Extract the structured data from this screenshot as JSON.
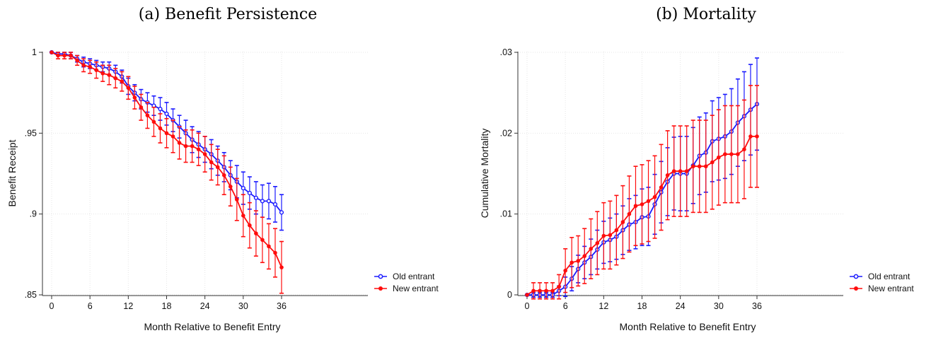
{
  "colors": {
    "old": "#1a1aff",
    "new": "#ff0d0d"
  },
  "chart_data": [
    {
      "type": "line",
      "title": "(a) Benefit Persistence",
      "xlabel": "Month Relative to Benefit Entry",
      "ylabel": "Benefit Receipt",
      "xlim": [
        0,
        36
      ],
      "ylim": [
        0.85,
        1.0
      ],
      "x_ticks": [
        0,
        6,
        12,
        18,
        24,
        30,
        36
      ],
      "y_ticks": [
        0.85,
        0.9,
        0.95,
        1.0
      ],
      "y_tick_labels": [
        ".85",
        ".9",
        ".95",
        "1"
      ],
      "grid": true,
      "legend": "right",
      "x": [
        0,
        1,
        2,
        3,
        4,
        5,
        6,
        7,
        8,
        9,
        10,
        11,
        12,
        13,
        14,
        15,
        16,
        17,
        18,
        19,
        20,
        21,
        22,
        23,
        24,
        25,
        26,
        27,
        28,
        29,
        30,
        31,
        32,
        33,
        34,
        35,
        36
      ],
      "series": [
        {
          "name": "Old entrant",
          "values": [
            1.0,
            0.999,
            0.999,
            0.998,
            0.996,
            0.994,
            0.993,
            0.992,
            0.991,
            0.99,
            0.988,
            0.985,
            0.979,
            0.975,
            0.971,
            0.969,
            0.967,
            0.965,
            0.962,
            0.958,
            0.954,
            0.95,
            0.946,
            0.943,
            0.94,
            0.937,
            0.933,
            0.929,
            0.924,
            0.92,
            0.916,
            0.913,
            0.91,
            0.908,
            0.908,
            0.906,
            0.901
          ],
          "errors": [
            0.0,
            0.001,
            0.001,
            0.002,
            0.002,
            0.003,
            0.003,
            0.003,
            0.003,
            0.004,
            0.004,
            0.004,
            0.005,
            0.005,
            0.006,
            0.006,
            0.006,
            0.007,
            0.007,
            0.007,
            0.007,
            0.008,
            0.008,
            0.008,
            0.008,
            0.009,
            0.009,
            0.009,
            0.009,
            0.01,
            0.01,
            0.01,
            0.01,
            0.01,
            0.011,
            0.011,
            0.011
          ]
        },
        {
          "name": "New entrant",
          "values": [
            1.0,
            0.998,
            0.998,
            0.998,
            0.995,
            0.992,
            0.991,
            0.989,
            0.987,
            0.986,
            0.984,
            0.982,
            0.978,
            0.972,
            0.966,
            0.961,
            0.957,
            0.953,
            0.95,
            0.948,
            0.944,
            0.942,
            0.942,
            0.94,
            0.937,
            0.932,
            0.929,
            0.924,
            0.917,
            0.909,
            0.899,
            0.893,
            0.888,
            0.884,
            0.88,
            0.876,
            0.867
          ],
          "errors": [
            0.0,
            0.002,
            0.002,
            0.002,
            0.003,
            0.004,
            0.004,
            0.005,
            0.005,
            0.006,
            0.006,
            0.006,
            0.007,
            0.007,
            0.008,
            0.008,
            0.009,
            0.009,
            0.009,
            0.01,
            0.01,
            0.01,
            0.01,
            0.01,
            0.011,
            0.011,
            0.011,
            0.012,
            0.012,
            0.013,
            0.013,
            0.014,
            0.014,
            0.014,
            0.014,
            0.015,
            0.016
          ]
        }
      ]
    },
    {
      "type": "line",
      "title": "(b) Mortality",
      "xlabel": "Month Relative to Benefit Entry",
      "ylabel": "Cumulative Mortality",
      "xlim": [
        0,
        36
      ],
      "ylim": [
        0,
        0.03
      ],
      "x_ticks": [
        0,
        6,
        12,
        18,
        24,
        30,
        36
      ],
      "y_ticks": [
        0,
        0.01,
        0.02,
        0.03
      ],
      "y_tick_labels": [
        "0",
        ".01",
        ".02",
        ".03"
      ],
      "grid": true,
      "legend": "right",
      "x": [
        0,
        1,
        2,
        3,
        4,
        5,
        6,
        7,
        8,
        9,
        10,
        11,
        12,
        13,
        14,
        15,
        16,
        17,
        18,
        19,
        20,
        21,
        22,
        23,
        24,
        25,
        26,
        27,
        28,
        29,
        30,
        31,
        32,
        33,
        34,
        35,
        36
      ],
      "series": [
        {
          "name": "Old entrant",
          "values": [
            0.0,
            0.0,
            0.0,
            0.0,
            0.0,
            0.0005,
            0.001,
            0.002,
            0.0032,
            0.004,
            0.0047,
            0.0056,
            0.0065,
            0.0068,
            0.0072,
            0.008,
            0.0087,
            0.009,
            0.0096,
            0.0097,
            0.0112,
            0.0127,
            0.014,
            0.015,
            0.015,
            0.015,
            0.016,
            0.0172,
            0.0176,
            0.019,
            0.0193,
            0.0196,
            0.0202,
            0.0213,
            0.0221,
            0.0229,
            0.0236
          ],
          "errors": [
            0.0,
            0.0003,
            0.0003,
            0.0003,
            0.0003,
            0.0006,
            0.0012,
            0.0015,
            0.0017,
            0.002,
            0.0022,
            0.0024,
            0.0026,
            0.0027,
            0.0028,
            0.003,
            0.0032,
            0.0033,
            0.0035,
            0.0036,
            0.0037,
            0.0038,
            0.0042,
            0.0045,
            0.0046,
            0.0046,
            0.0047,
            0.0048,
            0.0049,
            0.005,
            0.0051,
            0.0052,
            0.0053,
            0.0054,
            0.0055,
            0.0056,
            0.0057
          ]
        },
        {
          "name": "New entrant",
          "values": [
            0.0,
            0.0005,
            0.0005,
            0.0005,
            0.0005,
            0.001,
            0.003,
            0.004,
            0.0042,
            0.0048,
            0.0057,
            0.0064,
            0.0073,
            0.0074,
            0.008,
            0.009,
            0.01,
            0.011,
            0.0112,
            0.0116,
            0.0121,
            0.0133,
            0.0148,
            0.0153,
            0.0153,
            0.0153,
            0.0159,
            0.0159,
            0.0159,
            0.0164,
            0.017,
            0.0174,
            0.0174,
            0.0174,
            0.018,
            0.0196,
            0.0196
          ],
          "errors": [
            0.0,
            0.001,
            0.001,
            0.001,
            0.001,
            0.0015,
            0.0027,
            0.0031,
            0.0031,
            0.0034,
            0.0037,
            0.0039,
            0.0041,
            0.0042,
            0.0043,
            0.0045,
            0.0047,
            0.0049,
            0.0049,
            0.005,
            0.0051,
            0.0053,
            0.0055,
            0.0056,
            0.0056,
            0.0056,
            0.0057,
            0.0057,
            0.0057,
            0.0058,
            0.0059,
            0.006,
            0.006,
            0.006,
            0.0061,
            0.0063,
            0.0063
          ]
        }
      ]
    }
  ]
}
